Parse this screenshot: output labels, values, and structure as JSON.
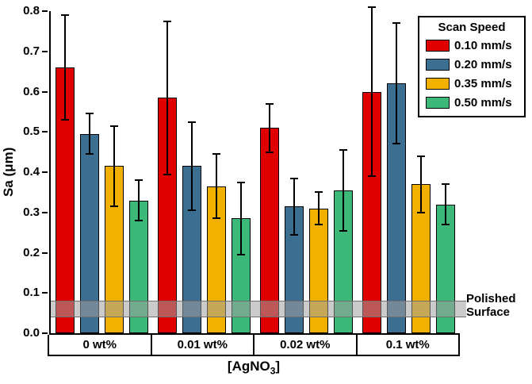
{
  "chart_data": {
    "type": "bar",
    "title": "",
    "ylabel": "Sa (μm)",
    "xlabel": {
      "pre": "[AgNO",
      "sub": "3",
      "post": "]"
    },
    "ylim": [
      0,
      0.8
    ],
    "yticks": [
      "0.0",
      "0.1",
      "0.2",
      "0.3",
      "0.4",
      "0.5",
      "0.6",
      "0.7",
      "0.8"
    ],
    "categories": [
      "0 wt%",
      "0.01 wt%",
      "0.02 wt%",
      "0.1 wt%"
    ],
    "grid": false,
    "legend": {
      "title": "Scan Speed",
      "position": "top-right"
    },
    "series": [
      {
        "name": "0.10 mm/s",
        "color": "#e00000",
        "values": [
          0.66,
          0.585,
          0.51,
          0.6
        ],
        "errors": [
          0.13,
          0.19,
          0.06,
          0.21
        ]
      },
      {
        "name": "0.20 mm/s",
        "color": "#3c6e91",
        "values": [
          0.495,
          0.415,
          0.315,
          0.62
        ],
        "errors": [
          0.05,
          0.11,
          0.07,
          0.15
        ]
      },
      {
        "name": "0.35 mm/s",
        "color": "#f2b000",
        "values": [
          0.415,
          0.365,
          0.31,
          0.37
        ],
        "errors": [
          0.1,
          0.08,
          0.04,
          0.07
        ]
      },
      {
        "name": "0.50 mm/s",
        "color": "#3cb878",
        "values": [
          0.33,
          0.285,
          0.355,
          0.32
        ],
        "errors": [
          0.05,
          0.09,
          0.1,
          0.05
        ]
      }
    ],
    "reference_band": {
      "low": 0.04,
      "high": 0.08,
      "label": [
        "Polished",
        "Surface"
      ]
    }
  }
}
